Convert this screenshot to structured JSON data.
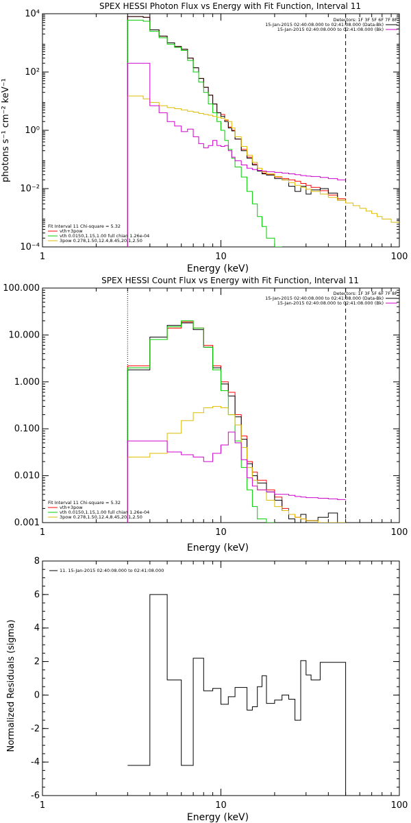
{
  "chart_data": [
    {
      "type": "line",
      "title": "SPEX HESSI Photon Flux vs Energy with Fit Function, Interval 11",
      "xlabel": "Energy (keV)",
      "ylabel": "photons s⁻¹ cm⁻² keV⁻¹",
      "x_scale": "log",
      "y_scale": "log",
      "xlim": [
        1,
        100
      ],
      "ylim": [
        0.0001,
        10000
      ],
      "x_ticks": [
        {
          "value": 1,
          "label": "1"
        },
        {
          "value": 10,
          "label": "10"
        },
        {
          "value": 100,
          "label": "100"
        }
      ],
      "y_ticks": [
        {
          "value": 0.0001,
          "label": "10⁻⁴"
        },
        {
          "value": 0.01,
          "label": "10⁻²"
        },
        {
          "value": 1,
          "label": "10⁰"
        },
        {
          "value": 100,
          "label": "10²"
        },
        {
          "value": 10000,
          "label": "10⁴"
        }
      ],
      "vlines": [
        {
          "x": 3,
          "style": "dotted",
          "color": "#000000"
        },
        {
          "x": 50,
          "style": "dashed",
          "color": "#000000"
        }
      ],
      "legend_top_right": {
        "header": "Detectors: 1F 3F 5F 6F 7F 8F",
        "entries": [
          {
            "text": "15-Jan-2015 02:40:08.000 to 02:41:08.000 (Data-Bk)",
            "color": "#000000"
          },
          {
            "text": "15-Jan-2015 02:40:08.000 to 02:41:08.000 (Bk)",
            "color": "#cc00cc"
          }
        ]
      },
      "legend_bottom_left": {
        "header": "Fit Interval 11    Chi-square = 5.32",
        "entries": [
          {
            "text": "vth+3pow",
            "color": "#ff0000"
          },
          {
            "text": "vth 0.0150,1.15,1.00  full chian 1.26e-04",
            "color": "#00cc00"
          },
          {
            "text": "3pow 0.278,1.50,12.4,8.45,20.1,2.50",
            "color": "#ddbb00"
          }
        ]
      },
      "series": [
        {
          "color": "#ff0000",
          "edges": [
            3,
            3.33,
            3.67,
            4,
            4.5,
            5,
            5.5,
            6,
            6.5,
            7,
            7.5,
            8,
            8.5,
            9,
            9.5,
            10,
            10.5,
            11,
            11.5,
            12,
            13,
            14,
            15,
            16,
            17,
            18,
            20,
            22,
            24,
            26,
            28,
            30,
            32,
            36,
            40,
            45,
            50
          ],
          "values": [
            8000,
            8000,
            7500,
            2800,
            1700,
            1000,
            750,
            600,
            300,
            140,
            60,
            30,
            16,
            8,
            4,
            3.5,
            2.2,
            1.3,
            1.0,
            0.5,
            0.22,
            0.12,
            0.07,
            0.042,
            0.034,
            0.03,
            0.025,
            0.022,
            0.02,
            0.018,
            0.015,
            0.013,
            0.011,
            0.0085,
            0.006,
            0.0045
          ]
        },
        {
          "color": "#000000",
          "edges": [
            3,
            3.33,
            3.67,
            4,
            4.5,
            5,
            5.5,
            6,
            6.5,
            7,
            7.5,
            8,
            8.5,
            9,
            9.5,
            10,
            10.5,
            11,
            11.5,
            12,
            13,
            14,
            15,
            16,
            17,
            18,
            20,
            22,
            24,
            26,
            28,
            30,
            32,
            36,
            40,
            45,
            50
          ],
          "values": [
            8000,
            8000,
            7500,
            2800,
            1700,
            1000,
            750,
            600,
            300,
            140,
            60,
            30,
            16,
            8,
            4,
            3,
            2.0,
            1.2,
            0.95,
            0.5,
            0.2,
            0.11,
            0.065,
            0.04,
            0.032,
            0.029,
            0.022,
            0.02,
            0.012,
            0.008,
            0.012,
            0.0065,
            0.009,
            0.01,
            0.007,
            0.004
          ]
        },
        {
          "color": "#00cc00",
          "edges": [
            3,
            3.33,
            3.67,
            4,
            4.5,
            5,
            5.5,
            6,
            6.5,
            7,
            7.5,
            8,
            8.5,
            9,
            9.5,
            10,
            10.5,
            11,
            11.5,
            12,
            13,
            14,
            15,
            16,
            17,
            18,
            20,
            22
          ],
          "values": [
            6000,
            6000,
            5500,
            2500,
            1500,
            900,
            700,
            550,
            250,
            100,
            45,
            20,
            8,
            4,
            2,
            1,
            0.45,
            0.22,
            0.11,
            0.055,
            0.025,
            0.008,
            0.003,
            0.0011,
            0.0005,
            0.0002,
            0.0001
          ]
        },
        {
          "color": "#ddbb00",
          "edges": [
            3,
            3.33,
            3.67,
            4,
            4.5,
            5,
            5.5,
            6,
            6.5,
            7,
            7.5,
            8,
            8.5,
            9,
            9.5,
            10,
            10.5,
            11,
            11.5,
            12,
            13,
            14,
            15,
            16,
            17,
            18,
            20,
            22,
            24,
            26,
            28,
            30,
            32,
            36,
            40,
            45,
            50,
            55,
            60,
            65,
            70,
            75,
            80,
            90,
            100
          ],
          "values": [
            15,
            15,
            12,
            9,
            7,
            6,
            5.5,
            5,
            4.5,
            4.2,
            3.8,
            3.5,
            3.3,
            3,
            2.8,
            2.6,
            2.3,
            2.0,
            1.2,
            0.6,
            0.28,
            0.14,
            0.08,
            0.05,
            0.038,
            0.032,
            0.026,
            0.02,
            0.016,
            0.013,
            0.011,
            0.0095,
            0.008,
            0.0065,
            0.005,
            0.004,
            0.0032,
            0.0026,
            0.0021,
            0.0017,
            0.0014,
            0.0011,
            0.0009,
            0.0007
          ]
        },
        {
          "color": "#cc00cc",
          "edges": [
            3,
            3.33,
            3.67,
            4,
            4.5,
            5,
            5.5,
            6,
            6.5,
            7,
            7.5,
            8,
            8.5,
            9,
            9.5,
            10,
            10.5,
            11,
            11.5,
            12,
            13,
            14,
            15,
            16,
            17,
            18,
            20,
            22,
            24,
            26,
            28,
            30,
            32,
            36,
            40,
            45,
            50
          ],
          "values": [
            200,
            200,
            200,
            7,
            4,
            2,
            1.4,
            0.9,
            1.1,
            0.6,
            0.35,
            0.25,
            0.3,
            0.45,
            0.3,
            0.28,
            0.3,
            0.2,
            0.12,
            0.09,
            0.065,
            0.05,
            0.045,
            0.042,
            0.04,
            0.038,
            0.036,
            0.034,
            0.032,
            0.03,
            0.028,
            0.027,
            0.026,
            0.024,
            0.022,
            0.02
          ]
        }
      ]
    },
    {
      "type": "line",
      "title": "SPEX HESSI Count Flux vs Energy with Fit Function, Interval 11",
      "xlabel": "Energy (keV)",
      "ylabel": "",
      "x_scale": "log",
      "y_scale": "log",
      "xlim": [
        1,
        100
      ],
      "ylim": [
        0.001,
        100
      ],
      "x_ticks": [
        {
          "value": 1,
          "label": "1"
        },
        {
          "value": 10,
          "label": "10"
        },
        {
          "value": 100,
          "label": "100"
        }
      ],
      "y_ticks": [
        {
          "value": 0.001,
          "label": "0.001"
        },
        {
          "value": 0.01,
          "label": "0.010"
        },
        {
          "value": 0.1,
          "label": "0.100"
        },
        {
          "value": 1,
          "label": "1.000"
        },
        {
          "value": 10,
          "label": "10.000"
        },
        {
          "value": 100,
          "label": "100.000"
        }
      ],
      "vlines": [
        {
          "x": 3,
          "style": "dotted",
          "color": "#000000"
        },
        {
          "x": 50,
          "style": "dashed",
          "color": "#000000"
        }
      ],
      "legend_top_right": {
        "header": "Detectors: 1F 3F 5F 6F 7F 8F",
        "entries": [
          {
            "text": "15-Jan-2015 02:40:08.000 to 02:41:08.000 (Data-Bk)",
            "color": "#000000"
          },
          {
            "text": "15-Jan-2015 02:40:08.000 to 02:41:08.000 (Bk)",
            "color": "#cc00cc"
          }
        ]
      },
      "legend_bottom_left": {
        "header": "Fit Interval 11    Chi-square = 5.32",
        "entries": [
          {
            "text": "vth+3pow",
            "color": "#ff0000"
          },
          {
            "text": "vth 0.0150,1.15,1.00  full chian 1.26e-04",
            "color": "#00cc00"
          },
          {
            "text": "3pow 0.278,1.50,12.4,8.45,20.1,2.50",
            "color": "#ddbb00"
          }
        ]
      },
      "series": [
        {
          "color": "#ff0000",
          "edges": [
            3,
            4,
            5,
            6,
            7,
            8,
            9,
            10,
            11,
            12,
            13,
            14,
            15,
            16,
            18,
            20,
            22,
            24,
            26,
            28,
            30,
            35,
            40,
            45,
            50
          ],
          "values": [
            2.2,
            8,
            14,
            19,
            14,
            6,
            2.2,
            1.0,
            0.6,
            0.2,
            0.07,
            0.02,
            0.012,
            0.008,
            0.005,
            0.0035,
            0.002,
            0.0015,
            0.0013,
            0.0012,
            0.0011,
            0.001,
            0.001,
            0.001
          ]
        },
        {
          "color": "#000000",
          "edges": [
            3,
            4,
            5,
            6,
            7,
            8,
            9,
            10,
            11,
            12,
            13,
            14,
            15,
            16,
            18,
            20,
            22,
            24,
            26,
            28,
            30,
            35,
            40,
            45,
            50
          ],
          "values": [
            1.8,
            9,
            16,
            18,
            13,
            5.5,
            2,
            0.9,
            0.5,
            0.18,
            0.06,
            0.018,
            0.01,
            0.007,
            0.0045,
            0.003,
            0.0018,
            0.0012,
            0.0009,
            0.0015,
            0.0011,
            0.0013,
            0.0016,
            0.0009
          ]
        },
        {
          "color": "#00cc00",
          "edges": [
            3,
            4,
            5,
            6,
            7,
            8,
            9,
            10,
            11,
            12,
            13,
            14,
            15,
            16,
            18,
            20
          ],
          "values": [
            2.0,
            8,
            15,
            20,
            14,
            5.5,
            1.8,
            0.65,
            0.2,
            0.055,
            0.015,
            0.005,
            0.0022,
            0.0012,
            0.001
          ]
        },
        {
          "color": "#ddbb00",
          "edges": [
            3,
            4,
            5,
            6,
            7,
            8,
            9,
            10,
            11,
            12,
            13,
            14,
            15,
            16,
            18,
            20,
            22,
            24,
            26,
            28,
            30,
            35,
            40,
            45,
            50
          ],
          "values": [
            0.025,
            0.03,
            0.08,
            0.15,
            0.22,
            0.28,
            0.3,
            0.28,
            0.2,
            0.12,
            0.04,
            0.015,
            0.008,
            0.005,
            0.003,
            0.0022,
            0.0018,
            0.0015,
            0.0013,
            0.0012,
            0.0011,
            0.001,
            0.001,
            0.001
          ]
        },
        {
          "color": "#cc00cc",
          "edges": [
            3,
            4,
            5,
            6,
            7,
            8,
            9,
            10,
            11,
            12,
            13,
            14,
            15,
            16,
            18,
            20,
            22,
            24,
            26,
            28,
            30,
            35,
            40,
            45,
            50
          ],
          "values": [
            0.055,
            0.055,
            0.032,
            0.028,
            0.025,
            0.02,
            0.03,
            0.045,
            0.085,
            0.05,
            0.022,
            0.009,
            0.006,
            0.005,
            0.0045,
            0.004,
            0.004,
            0.0038,
            0.0036,
            0.0035,
            0.0034,
            0.0033,
            0.0032,
            0.0031
          ]
        }
      ]
    },
    {
      "type": "line",
      "title": "",
      "xlabel": "Energy (keV)",
      "ylabel": "Normalized Residuals (sigma)",
      "x_scale": "log",
      "y_scale": "linear",
      "xlim": [
        1,
        100
      ],
      "ylim": [
        -6,
        8
      ],
      "x_ticks": [
        {
          "value": 1,
          "label": "1"
        },
        {
          "value": 10,
          "label": "10"
        },
        {
          "value": 100,
          "label": "100"
        }
      ],
      "y_ticks": [
        {
          "value": -6,
          "label": "-6"
        },
        {
          "value": -4,
          "label": "-4"
        },
        {
          "value": -2,
          "label": "-2"
        },
        {
          "value": 0,
          "label": "0"
        },
        {
          "value": 2,
          "label": "2"
        },
        {
          "value": 4,
          "label": "4"
        },
        {
          "value": 6,
          "label": "6"
        },
        {
          "value": 8,
          "label": "8"
        }
      ],
      "legend_top_left": {
        "entries": [
          {
            "text": "11. 15-Jan-2015 02:40:08.000 to 02:41:08.000",
            "color": "#000000"
          }
        ]
      },
      "series": [
        {
          "color": "#000000",
          "edges": [
            3,
            4,
            5,
            6,
            7,
            8,
            9,
            10,
            11,
            12,
            13,
            14,
            15,
            16,
            17,
            18,
            20,
            22,
            24,
            26,
            28,
            30,
            32,
            36,
            40,
            45,
            50
          ],
          "values": [
            -4.2,
            6.0,
            0.9,
            -4.2,
            2.2,
            0.25,
            0.4,
            -0.55,
            -0.1,
            0.45,
            0.45,
            -0.9,
            -0.7,
            0.5,
            1.15,
            -0.5,
            -0.3,
            0.0,
            -0.25,
            -1.5,
            2.05,
            1.2,
            0.9,
            1.95,
            1.95,
            1.95
          ]
        }
      ]
    }
  ]
}
